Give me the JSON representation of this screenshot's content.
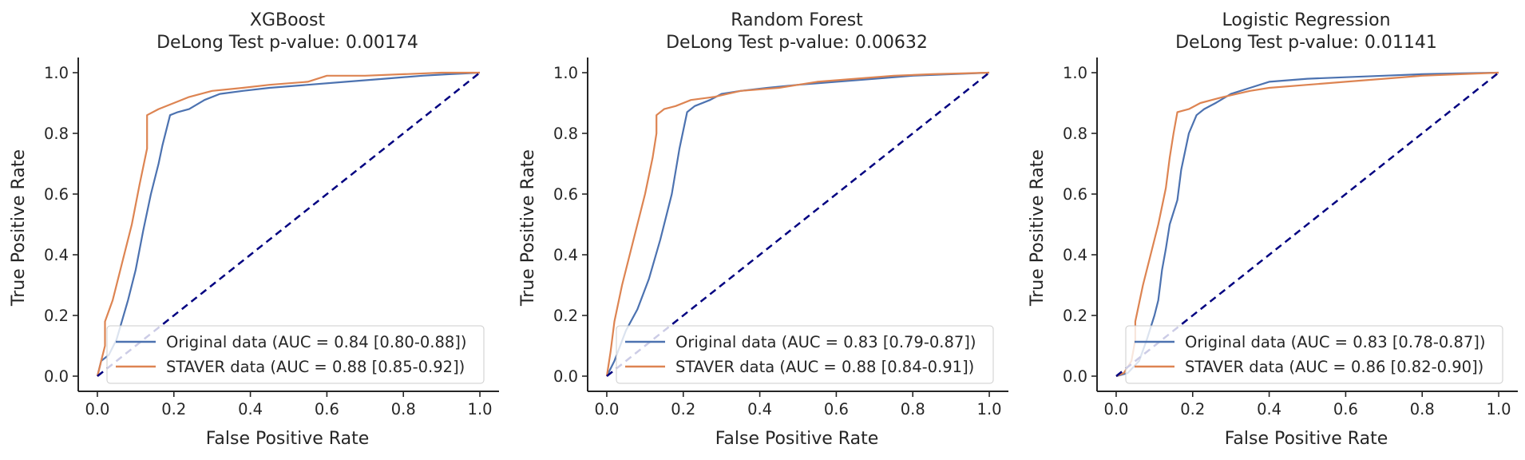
{
  "chart_data": [
    {
      "type": "line",
      "title": "XGBoost",
      "subtitle": "DeLong Test p-value: 0.00174",
      "xlabel": "False Positive Rate",
      "ylabel": "True Positive Rate",
      "xlim": [
        -0.05,
        1.05
      ],
      "ylim": [
        -0.05,
        1.05
      ],
      "xticks": [
        "0.0",
        "0.2",
        "0.4",
        "0.6",
        "0.8",
        "1.0"
      ],
      "yticks": [
        "0.0",
        "0.2",
        "0.4",
        "0.6",
        "0.8",
        "1.0"
      ],
      "legend_position": "lower-right",
      "grid": false,
      "series": [
        {
          "name": "Original data (AUC = 0.84 [0.80-0.88])",
          "color": "#4c72b0",
          "x": [
            0,
            0.01,
            0.03,
            0.05,
            0.08,
            0.1,
            0.12,
            0.14,
            0.16,
            0.17,
            0.19,
            0.21,
            0.24,
            0.28,
            0.32,
            0.38,
            0.45,
            0.55,
            0.65,
            0.75,
            0.85,
            0.92,
            1.0
          ],
          "y": [
            0,
            0.05,
            0.07,
            0.12,
            0.25,
            0.35,
            0.48,
            0.6,
            0.7,
            0.76,
            0.86,
            0.87,
            0.88,
            0.91,
            0.93,
            0.94,
            0.95,
            0.96,
            0.97,
            0.98,
            0.99,
            0.995,
            1.0
          ]
        },
        {
          "name": "STAVER data (AUC = 0.88 [0.85-0.92])",
          "color": "#dd8452",
          "x": [
            0,
            0.01,
            0.02,
            0.02,
            0.04,
            0.06,
            0.09,
            0.11,
            0.13,
            0.13,
            0.16,
            0.2,
            0.24,
            0.3,
            0.38,
            0.45,
            0.55,
            0.6,
            0.7,
            0.8,
            0.9,
            1.0
          ],
          "y": [
            0,
            0.05,
            0.1,
            0.18,
            0.25,
            0.35,
            0.5,
            0.63,
            0.75,
            0.86,
            0.88,
            0.9,
            0.92,
            0.94,
            0.95,
            0.96,
            0.97,
            0.99,
            0.99,
            0.995,
            1.0,
            1.0
          ]
        },
        {
          "name": "",
          "color": "#000080",
          "dashed": true,
          "x": [
            0,
            1
          ],
          "y": [
            0,
            1
          ]
        }
      ]
    },
    {
      "type": "line",
      "title": "Random Forest",
      "subtitle": "DeLong Test p-value: 0.00632",
      "xlabel": "False Positive Rate",
      "ylabel": "True Positive Rate",
      "xlim": [
        -0.05,
        1.05
      ],
      "ylim": [
        -0.05,
        1.05
      ],
      "xticks": [
        "0.0",
        "0.2",
        "0.4",
        "0.6",
        "0.8",
        "1.0"
      ],
      "yticks": [
        "0.0",
        "0.2",
        "0.4",
        "0.6",
        "0.8",
        "1.0"
      ],
      "legend_position": "lower-right",
      "grid": false,
      "series": [
        {
          "name": "Original data (AUC = 0.83 [0.79-0.87])",
          "color": "#4c72b0",
          "x": [
            0,
            0.02,
            0.05,
            0.08,
            0.11,
            0.14,
            0.17,
            0.19,
            0.21,
            0.23,
            0.27,
            0.3,
            0.35,
            0.42,
            0.5,
            0.6,
            0.7,
            0.8,
            0.9,
            1.0
          ],
          "y": [
            0,
            0.05,
            0.15,
            0.22,
            0.32,
            0.45,
            0.6,
            0.75,
            0.87,
            0.89,
            0.91,
            0.93,
            0.94,
            0.95,
            0.96,
            0.97,
            0.98,
            0.99,
            0.995,
            1.0
          ]
        },
        {
          "name": "STAVER data (AUC = 0.88 [0.84-0.91])",
          "color": "#dd8452",
          "x": [
            0,
            0.01,
            0.02,
            0.04,
            0.06,
            0.08,
            0.1,
            0.12,
            0.13,
            0.13,
            0.15,
            0.18,
            0.22,
            0.28,
            0.35,
            0.45,
            0.55,
            0.65,
            0.75,
            0.85,
            1.0
          ],
          "y": [
            0,
            0.08,
            0.18,
            0.3,
            0.4,
            0.5,
            0.6,
            0.72,
            0.8,
            0.86,
            0.88,
            0.89,
            0.91,
            0.92,
            0.94,
            0.95,
            0.97,
            0.98,
            0.99,
            0.995,
            1.0
          ]
        },
        {
          "name": "",
          "color": "#000080",
          "dashed": true,
          "x": [
            0,
            1
          ],
          "y": [
            0,
            1
          ]
        }
      ]
    },
    {
      "type": "line",
      "title": "Logistic Regression",
      "subtitle": "DeLong Test p-value: 0.01141",
      "xlabel": "False Positive Rate",
      "ylabel": "True Positive Rate",
      "xlim": [
        -0.05,
        1.05
      ],
      "ylim": [
        -0.05,
        1.05
      ],
      "xticks": [
        "0.0",
        "0.2",
        "0.4",
        "0.6",
        "0.8",
        "1.0"
      ],
      "yticks": [
        "0.0",
        "0.2",
        "0.4",
        "0.6",
        "0.8",
        "1.0"
      ],
      "legend_position": "lower-right",
      "grid": false,
      "series": [
        {
          "name": "Original data (AUC = 0.83 [0.78-0.87])",
          "color": "#4c72b0",
          "x": [
            0,
            0.03,
            0.06,
            0.08,
            0.1,
            0.11,
            0.12,
            0.13,
            0.14,
            0.16,
            0.17,
            0.19,
            0.21,
            0.23,
            0.26,
            0.3,
            0.35,
            0.4,
            0.5,
            0.6,
            0.7,
            0.8,
            0.9,
            1.0
          ],
          "y": [
            0,
            0.01,
            0.05,
            0.12,
            0.2,
            0.25,
            0.35,
            0.42,
            0.5,
            0.58,
            0.68,
            0.8,
            0.86,
            0.88,
            0.9,
            0.93,
            0.95,
            0.97,
            0.98,
            0.985,
            0.99,
            0.995,
            0.998,
            1.0
          ]
        },
        {
          "name": "STAVER data (AUC = 0.86 [0.82-0.90])",
          "color": "#dd8452",
          "x": [
            0,
            0.02,
            0.04,
            0.05,
            0.05,
            0.07,
            0.09,
            0.11,
            0.13,
            0.14,
            0.15,
            0.16,
            0.19,
            0.22,
            0.28,
            0.35,
            0.4,
            0.5,
            0.6,
            0.7,
            0.8,
            0.9,
            1.0
          ],
          "y": [
            0,
            0.01,
            0.05,
            0.12,
            0.18,
            0.3,
            0.4,
            0.5,
            0.62,
            0.72,
            0.8,
            0.87,
            0.88,
            0.9,
            0.92,
            0.94,
            0.95,
            0.96,
            0.97,
            0.98,
            0.99,
            0.995,
            1.0
          ]
        },
        {
          "name": "",
          "color": "#000080",
          "dashed": true,
          "x": [
            0,
            1
          ],
          "y": [
            0,
            1
          ]
        }
      ]
    }
  ]
}
